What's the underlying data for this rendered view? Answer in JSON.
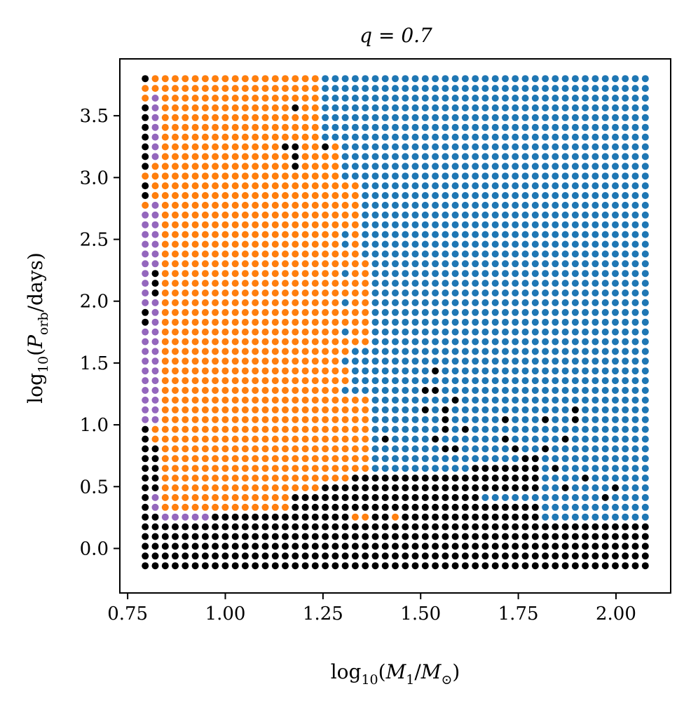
{
  "chart_data": {
    "type": "scatter",
    "title": "q = 0.7",
    "xlabel": "log10(M1/M⊙)",
    "ylabel": "log10(Porb/days)",
    "xlim": [
      0.73,
      2.14
    ],
    "ylim": [
      -0.36,
      3.96
    ],
    "x_ticks": [
      "0.75",
      "1.00",
      "1.25",
      "1.50",
      "1.75",
      "2.00"
    ],
    "y_ticks": [
      "0.0",
      "0.5",
      "1.0",
      "1.5",
      "2.0",
      "2.5",
      "3.0",
      "3.5"
    ],
    "grid": {
      "x_start": 0.795,
      "x_step": 0.0256,
      "x_count": 51,
      "y_start": -0.14,
      "y_step": 0.0788,
      "y_count": 51
    },
    "colors": {
      "orange": "#ff7f0e",
      "blue": "#1f77b4",
      "purple": "#9467bd",
      "black": "#000000"
    },
    "regions_note_free": true
  }
}
